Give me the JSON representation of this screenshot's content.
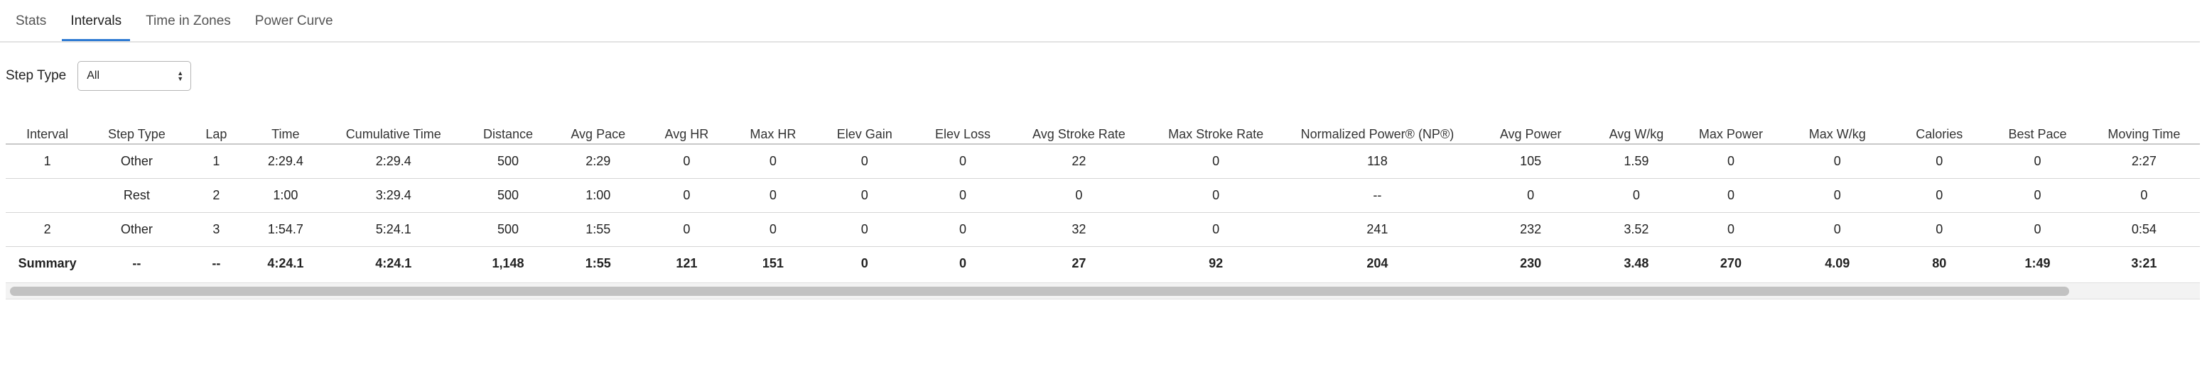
{
  "tabs": [
    {
      "label": "Stats",
      "active": false
    },
    {
      "label": "Intervals",
      "active": true
    },
    {
      "label": "Time in Zones",
      "active": false
    },
    {
      "label": "Power Curve",
      "active": false
    }
  ],
  "filter": {
    "label": "Step Type",
    "value": "All"
  },
  "table": {
    "columns": [
      "Interval",
      "Step Type",
      "Lap",
      "Time",
      "Cumulative Time",
      "Distance",
      "Avg Pace",
      "Avg HR",
      "Max HR",
      "Elev Gain",
      "Elev Loss",
      "Avg Stroke Rate",
      "Max Stroke Rate",
      "Normalized Power® (NP®)",
      "Avg Power",
      "Avg W/kg",
      "Max Power",
      "Max W/kg",
      "Calories",
      "Best Pace",
      "Moving Time"
    ],
    "rows": [
      [
        "1",
        "Other",
        "1",
        "2:29.4",
        "2:29.4",
        "500",
        "2:29",
        "0",
        "0",
        "0",
        "0",
        "22",
        "0",
        "118",
        "105",
        "1.59",
        "0",
        "0",
        "0",
        "0",
        "2:27"
      ],
      [
        "",
        "Rest",
        "2",
        "1:00",
        "3:29.4",
        "500",
        "1:00",
        "0",
        "0",
        "0",
        "0",
        "0",
        "0",
        "--",
        "0",
        "0",
        "0",
        "0",
        "0",
        "0",
        "0"
      ],
      [
        "2",
        "Other",
        "3",
        "1:54.7",
        "5:24.1",
        "500",
        "1:55",
        "0",
        "0",
        "0",
        "0",
        "32",
        "0",
        "241",
        "232",
        "3.52",
        "0",
        "0",
        "0",
        "0",
        "0:54"
      ]
    ],
    "summary": [
      "Summary",
      "--",
      "--",
      "4:24.1",
      "4:24.1",
      "1,148",
      "1:55",
      "121",
      "151",
      "0",
      "0",
      "27",
      "92",
      "204",
      "230",
      "3.48",
      "270",
      "4.09",
      "80",
      "1:49",
      "3:21"
    ]
  }
}
